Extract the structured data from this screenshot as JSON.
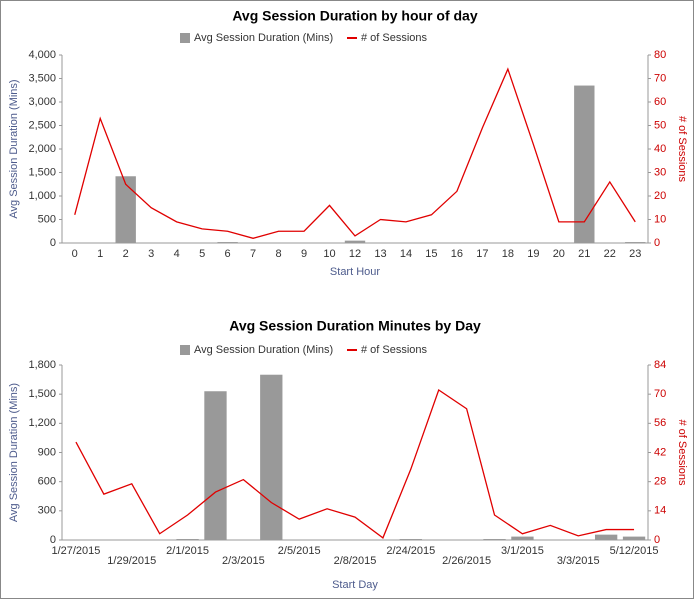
{
  "chart_data": [
    {
      "type": "bar-line",
      "title": "Avg Session Duration by hour of day",
      "x_label": "Start Hour",
      "y_label": "Avg Session Duration (Mins)",
      "y2_label": "# of Sessions",
      "categories": [
        "0",
        "1",
        "2",
        "3",
        "4",
        "5",
        "6",
        "7",
        "8",
        "9",
        "10",
        "12",
        "13",
        "14",
        "15",
        "16",
        "17",
        "18",
        "19",
        "20",
        "21",
        "22",
        "23"
      ],
      "series": [
        {
          "name": "Avg Session Duration (Mins)",
          "type": "bar",
          "color": "#999999",
          "values": [
            0,
            0,
            1420,
            0,
            0,
            0,
            20,
            0,
            0,
            0,
            0,
            50,
            0,
            0,
            0,
            0,
            0,
            0,
            0,
            0,
            3350,
            0,
            20
          ]
        },
        {
          "name": "# of Sessions",
          "type": "line",
          "axis": "y2",
          "color": "#e00000",
          "values": [
            12,
            53,
            25,
            15,
            9,
            6,
            5,
            2,
            5,
            5,
            16,
            3,
            10,
            9,
            12,
            22,
            49,
            74,
            42,
            9,
            9,
            26,
            9
          ]
        }
      ],
      "ylim": [
        0,
        4000
      ],
      "yticks": [
        0,
        500,
        {
          "value": 1000,
          "label": "1,000"
        },
        {
          "value": 1500,
          "label": "1,500"
        },
        {
          "value": 2000,
          "label": "2,000"
        },
        {
          "value": 2500,
          "label": "2,500"
        },
        {
          "value": 3000,
          "label": "3,000"
        },
        {
          "value": 3500,
          "label": "3,500"
        },
        {
          "value": 4000,
          "label": "4,000"
        }
      ],
      "y2lim": [
        0,
        80
      ],
      "y2ticks": [
        0,
        10,
        20,
        30,
        40,
        50,
        60,
        70,
        80
      ],
      "grid": false
    },
    {
      "type": "bar-line",
      "title": "Avg Session Duration Minutes by Day",
      "x_label": "Start Day",
      "y_label": "Avg Session Duration (Mins)",
      "y2_label": "# of Sessions",
      "categories": [
        "1/27/2015",
        null,
        "1/29/2015",
        null,
        "2/1/2015",
        null,
        "2/3/2015",
        null,
        "2/5/2015",
        null,
        "2/8/2015",
        null,
        "2/24/2015",
        null,
        "2/26/2015",
        null,
        "3/1/2015",
        null,
        "3/3/2015",
        null,
        "5/12/2015"
      ],
      "series": [
        {
          "name": "Avg Session Duration (Mins)",
          "type": "bar",
          "color": "#999999",
          "values": [
            0,
            0,
            0,
            0,
            10,
            1530,
            0,
            1700,
            0,
            0,
            0,
            0,
            10,
            0,
            0,
            10,
            35,
            0,
            0,
            55,
            35
          ]
        },
        {
          "name": "# of Sessions",
          "type": "line",
          "axis": "y2",
          "color": "#e00000",
          "values": [
            47,
            22,
            27,
            3,
            12,
            23,
            29,
            18,
            10,
            15,
            11,
            1,
            34,
            72,
            63,
            12,
            3,
            7,
            2,
            5,
            5
          ]
        }
      ],
      "ylim": [
        0,
        1800
      ],
      "yticks": [
        0,
        300,
        600,
        900,
        {
          "value": 1200,
          "label": "1,200"
        },
        {
          "value": 1500,
          "label": "1,500"
        },
        {
          "value": 1800,
          "label": "1,800"
        }
      ],
      "y2lim": [
        0,
        84
      ],
      "y2ticks": [
        0,
        14,
        28,
        42,
        56,
        70,
        84
      ],
      "grid": false
    }
  ]
}
